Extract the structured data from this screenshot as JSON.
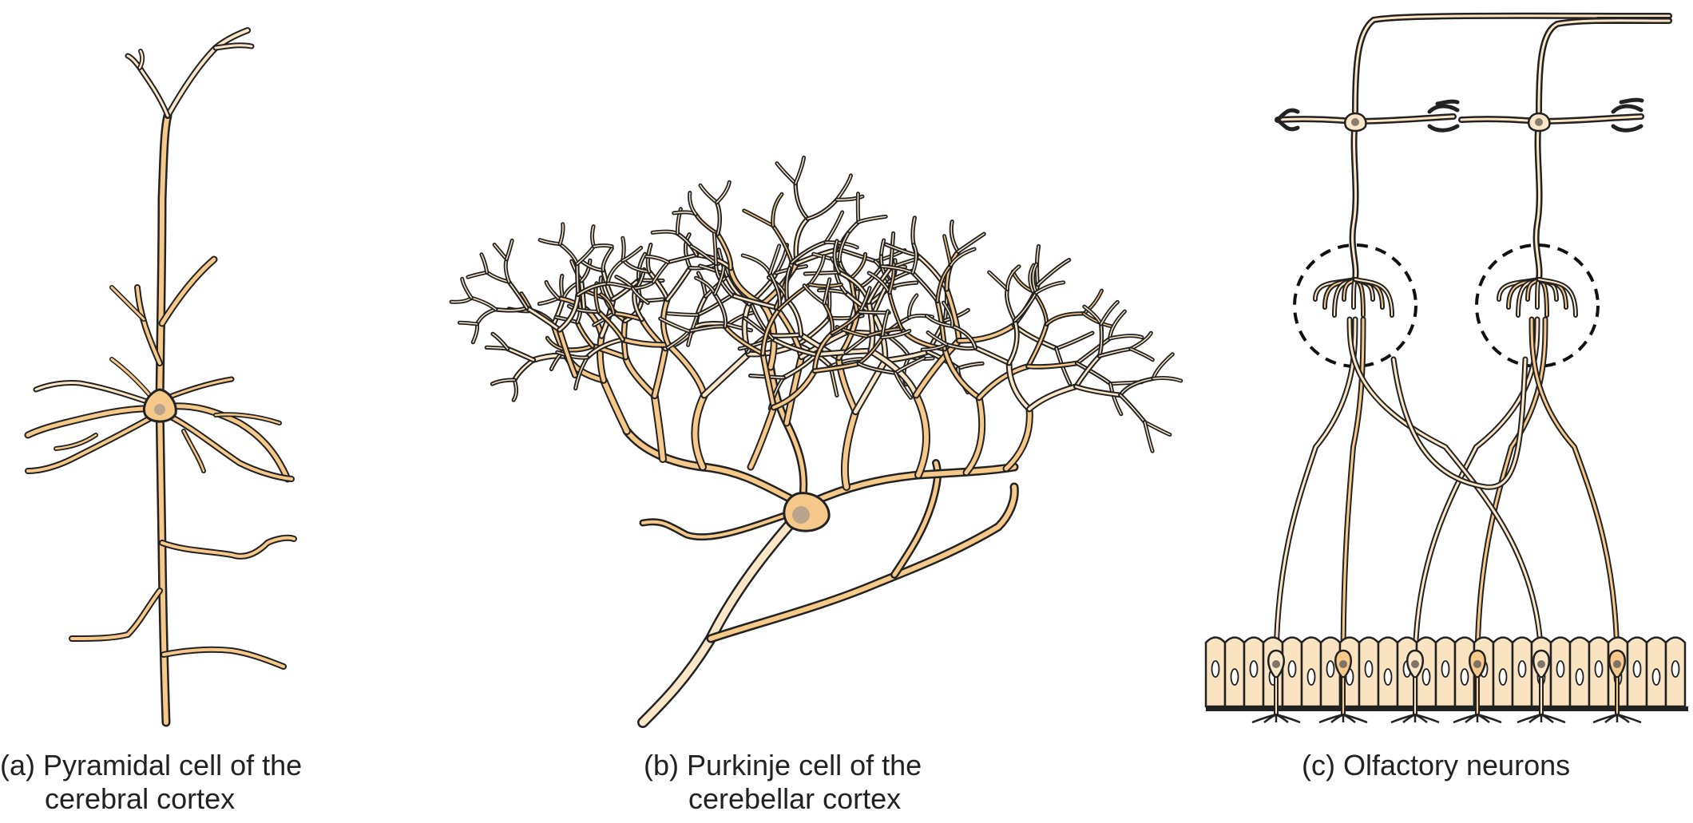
{
  "panels": [
    {
      "id": "a",
      "caption_line1": "(a) Pyramidal cell of the",
      "caption_line2": "cerebral cortex"
    },
    {
      "id": "b",
      "caption_line1": "(b) Purkinje cell of the",
      "caption_line2": "cerebellar cortex"
    },
    {
      "id": "c",
      "caption_line1": "(c) Olfactory neurons"
    }
  ],
  "colors": {
    "neuron_fill": "#f6c98a",
    "neuron_pale": "#fbe7c8",
    "outline": "#222222",
    "nucleus": "#b8a58c",
    "epithelium": "#f9e3c0",
    "dashed_circle": "#111111"
  }
}
